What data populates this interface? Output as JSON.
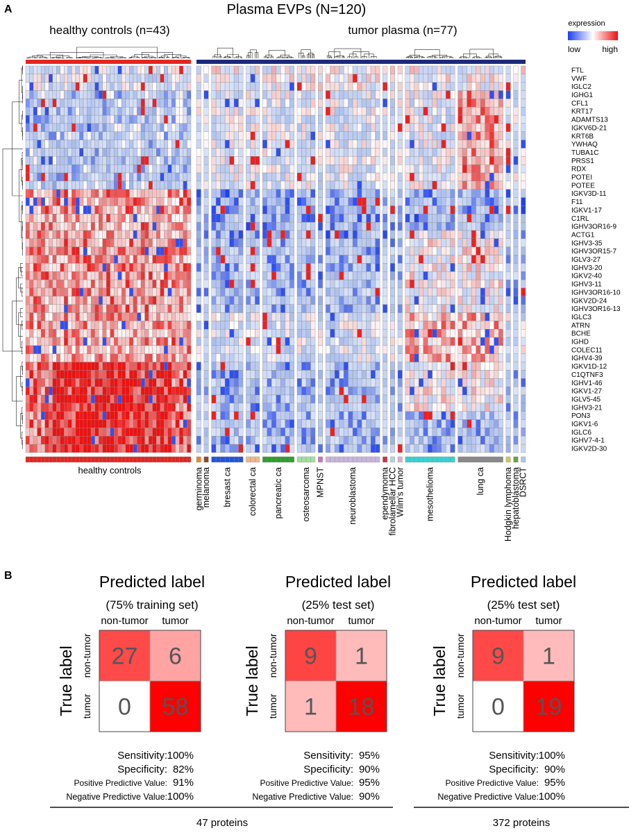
{
  "panel_a": {
    "letter": "A",
    "title": "Plasma EVPs (N=120)",
    "group_labels": [
      "healthy controls (n=43)",
      "tumor plasma (n=77)"
    ],
    "legend": {
      "title": "expression",
      "low": "low",
      "high": "high",
      "low_color": "#1f3ff2",
      "mid_color": "#ffffff",
      "high_color": "#ee1111"
    },
    "bottom_label": "healthy controls",
    "genes": [
      "FTL",
      "VWF",
      "IGLC2",
      "IGHG1",
      "CFL1",
      "KRT17",
      "ADAMTS13",
      "IGKV6D-21",
      "KRT6B",
      "YWHAQ",
      "TUBA1C",
      "PRSS1",
      "RDX",
      "POTEI",
      "POTEE",
      "IGKV3D-11",
      "F11",
      "IGKV1-17",
      "C1RL",
      "IGHV3OR16-9",
      "ACTG1",
      "IGHV3-35",
      "IGHV3OR15-7",
      "IGLV3-27",
      "IGHV3-20",
      "IGKV2-40",
      "IGHV3-11",
      "IGHV3OR16-10",
      "IGKV2D-24",
      "IGHV3OR16-13",
      "IGLC3",
      "ATRN",
      "BCHE",
      "IGHD",
      "COLEC11",
      "IGHV4-39",
      "IGKV1D-12",
      "C1QTNF3",
      "IGHV1-46",
      "IGKV1-27",
      "IGLV5-45",
      "IGHV3-21",
      "PON3",
      "IGKV1-6",
      "IGLC6",
      "IGHV7-4-1",
      "IGKV2D-30"
    ],
    "tumor_types": [
      {
        "name": "germinoma",
        "n": 1,
        "color": "#e8892c"
      },
      {
        "name": "melanoma",
        "n": 1,
        "color": "#8a4a2a"
      },
      {
        "name": "bresast ca",
        "n": 7,
        "color": "#2255dd"
      },
      {
        "name": "colorectal ca",
        "n": 3,
        "color": "#f0b889"
      },
      {
        "name": "pancreatic ca",
        "n": 7,
        "color": "#2e9e2e"
      },
      {
        "name": "osteosarcoma",
        "n": 4,
        "color": "#9fe09f"
      },
      {
        "name": "MPNST",
        "n": 1,
        "color": "#d070c8"
      },
      {
        "name": "neuroblastoma",
        "n": 12,
        "color": "#c8b4dc"
      },
      {
        "name": "ependymoma",
        "n": 1,
        "color": "#cc3344"
      },
      {
        "name": "fibrolamellar HCC",
        "n": 1,
        "color": "#a8d8e8"
      },
      {
        "name": "Wilm's tumor",
        "n": 1,
        "color": "#e8a8d8"
      },
      {
        "name": "mesothelioma",
        "n": 11,
        "color": "#33d3d3"
      },
      {
        "name": "lung ca",
        "n": 10,
        "color": "#888888"
      },
      {
        "name": "Hodgkin lymphoma",
        "n": 1,
        "color": "#c8c860"
      },
      {
        "name": "hepatoblastoma",
        "n": 1,
        "color": "#70a040"
      },
      {
        "name": "DSRCT",
        "n": 1,
        "color": "#a8c8e8"
      }
    ]
  },
  "panel_b": {
    "letter": "B",
    "matrices": [
      {
        "title": "Predicted label",
        "subtitle": "(75% training set)",
        "col_labels": [
          "non-tumor",
          "tumor"
        ],
        "y_title": "True label",
        "row_labels": [
          "non-tumor",
          "tumor"
        ],
        "values": [
          [
            27,
            6
          ],
          [
            0,
            58
          ]
        ],
        "stats": [
          [
            "Sensitivity:",
            "100%"
          ],
          [
            "Specificity:",
            "82%"
          ],
          [
            "Positive Predictive Value:",
            "91%"
          ],
          [
            "Negative Predictive Value:",
            "100%"
          ]
        ]
      },
      {
        "title": "Predicted label",
        "subtitle": "(25% test set)",
        "col_labels": [
          "non-tumor",
          "tumor"
        ],
        "y_title": "True label",
        "row_labels": [
          "non-tumor",
          "tumor"
        ],
        "values": [
          [
            9,
            1
          ],
          [
            1,
            18
          ]
        ],
        "stats": [
          [
            "Sensitivity:",
            "95%"
          ],
          [
            "Specificity:",
            "90%"
          ],
          [
            "Positive Predictive Value:",
            "95%"
          ],
          [
            "Negative Predictive Value:",
            "90%"
          ]
        ]
      },
      {
        "title": "Predicted label",
        "subtitle": "(25% test set)",
        "col_labels": [
          "non-tumor",
          "tumor"
        ],
        "y_title": "True label",
        "row_labels": [
          "non-tumor",
          "tumor"
        ],
        "values": [
          [
            9,
            1
          ],
          [
            0,
            19
          ]
        ],
        "stats": [
          [
            "Sensitivity:",
            "100%"
          ],
          [
            "Specificity:",
            "90%"
          ],
          [
            "Positive Predictive Value:",
            "95%"
          ],
          [
            "Negative Predictive Value:",
            "100%"
          ]
        ]
      }
    ],
    "footers": [
      "47 proteins",
      "372 proteins"
    ]
  },
  "chart_data": [
    {
      "type": "heatmap",
      "title": "Plasma EVPs (N=120)",
      "rows": "panel_a.genes",
      "columns": "120 plasma samples: 43 healthy controls, 77 tumor plasma",
      "scale": [
        "low",
        "high"
      ]
    },
    {
      "type": "table",
      "title": "Predicted label",
      "subtitle": "(75% training set)",
      "rows": [
        "non-tumor",
        "tumor"
      ],
      "columns": [
        "non-tumor",
        "tumor"
      ],
      "values": [
        [
          27,
          6
        ],
        [
          0,
          58
        ]
      ]
    },
    {
      "type": "table",
      "title": "Predicted label",
      "subtitle": "(25% test set)",
      "rows": [
        "non-tumor",
        "tumor"
      ],
      "columns": [
        "non-tumor",
        "tumor"
      ],
      "values": [
        [
          9,
          1
        ],
        [
          1,
          18
        ]
      ]
    },
    {
      "type": "table",
      "title": "Predicted label",
      "subtitle": "(25% test set)",
      "rows": [
        "non-tumor",
        "tumor"
      ],
      "columns": [
        "non-tumor",
        "tumor"
      ],
      "values": [
        [
          9,
          1
        ],
        [
          0,
          19
        ]
      ]
    }
  ]
}
